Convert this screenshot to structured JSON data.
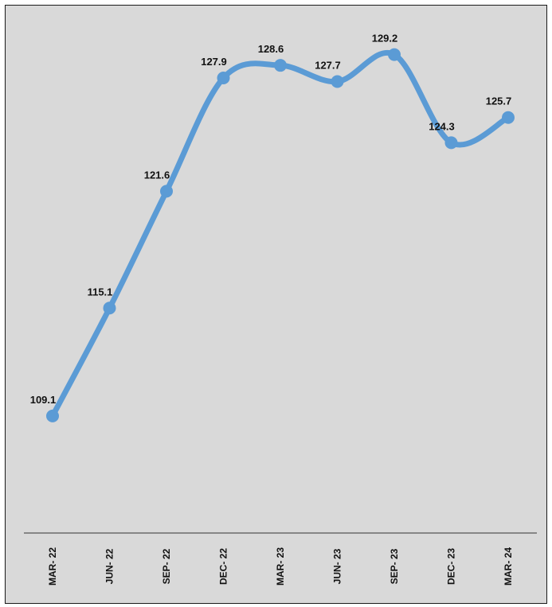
{
  "chart_data": {
    "type": "line",
    "categories": [
      "MAR- 22",
      "JUN- 22",
      "SEP- 22",
      "DEC- 22",
      "MAR- 23",
      "JUN- 23",
      "SEP- 23",
      "DEC- 23",
      "MAR- 24"
    ],
    "series": [
      {
        "values": [
          109.1,
          115.1,
          121.6,
          127.9,
          128.6,
          127.7,
          129.2,
          124.3,
          125.7
        ]
      }
    ],
    "data_labels": [
      "109.1",
      "115.1",
      "121.6",
      "127.9",
      "128.6",
      "127.7",
      "129.2",
      "124.3",
      "125.7"
    ],
    "title": "",
    "xlabel": "",
    "ylabel": "",
    "ylim": [
      100,
      131
    ],
    "grid": false,
    "legend": "none",
    "colors": {
      "line": "#5b9bd5",
      "background": "#d9d9d9",
      "axis": "#333333"
    }
  }
}
